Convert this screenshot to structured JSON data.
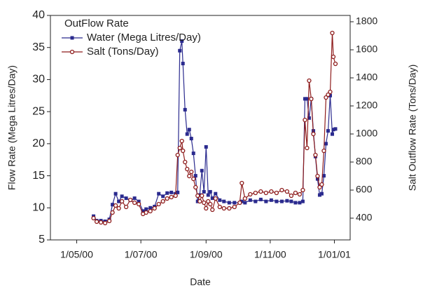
{
  "chart_data": {
    "type": "line",
    "x_label": "Date",
    "y_label": "Flow Rate (Mega Litres/Day)",
    "y2_label": "Salt Outflow Rate (Tons/Day)",
    "legend": "upper left",
    "legend_title": "OutFlow Rate",
    "xlim": [
      "2000-04-06",
      "2001-01-16"
    ],
    "xticks": [
      {
        "value": "2000-05-01",
        "label": "1/05/00"
      },
      {
        "value": "2000-07-01",
        "label": "1/07/00"
      },
      {
        "value": "2000-09-01",
        "label": "1/09/00"
      },
      {
        "value": "2000-11-01",
        "label": "1/11/00"
      },
      {
        "value": "2001-01-01",
        "label": "1/01/01"
      }
    ],
    "ylim": [
      5,
      40
    ],
    "yticks": [
      5,
      10,
      15,
      20,
      25,
      30,
      35,
      40
    ],
    "y2lim": [
      245,
      1845
    ],
    "y2ticks": [
      400,
      600,
      800,
      1000,
      1200,
      1400,
      1600,
      1800
    ],
    "x": [
      "2000-05-17",
      "2000-05-20",
      "2000-05-24",
      "2000-05-28",
      "2000-06-01",
      "2000-06-04",
      "2000-06-07",
      "2000-06-10",
      "2000-06-13",
      "2000-06-17",
      "2000-06-21",
      "2000-06-25",
      "2000-06-29",
      "2000-07-03",
      "2000-07-06",
      "2000-07-10",
      "2000-07-14",
      "2000-07-18",
      "2000-07-22",
      "2000-07-26",
      "2000-07-30",
      "2000-08-03",
      "2000-08-05",
      "2000-08-07",
      "2000-08-09",
      "2000-08-10",
      "2000-08-12",
      "2000-08-14",
      "2000-08-16",
      "2000-08-18",
      "2000-08-20",
      "2000-08-22",
      "2000-08-24",
      "2000-08-26",
      "2000-08-28",
      "2000-08-30",
      "2000-09-01",
      "2000-09-03",
      "2000-09-05",
      "2000-09-07",
      "2000-09-10",
      "2000-09-14",
      "2000-09-18",
      "2000-09-23",
      "2000-09-28",
      "2000-10-03",
      "2000-10-05",
      "2000-10-08",
      "2000-10-13",
      "2000-10-18",
      "2000-10-23",
      "2000-10-28",
      "2000-11-02",
      "2000-11-07",
      "2000-11-12",
      "2000-11-17",
      "2000-11-21",
      "2000-11-25",
      "2000-11-29",
      "2000-12-02",
      "2000-12-04",
      "2000-12-06",
      "2000-12-08",
      "2000-12-10",
      "2000-12-12",
      "2000-12-14",
      "2000-12-16",
      "2000-12-18",
      "2000-12-20",
      "2000-12-22",
      "2000-12-24",
      "2000-12-26",
      "2000-12-28",
      "2000-12-30",
      "2000-12-31",
      "2001-01-02"
    ],
    "series": [
      {
        "name": "Water (Mega Litres/Day)",
        "color": "#2a2a8e",
        "marker": "square",
        "values": [
          8.7,
          8.0,
          8.0,
          7.9,
          8.2,
          10.5,
          12.2,
          11.0,
          11.8,
          11.5,
          11.2,
          11.5,
          11.0,
          9.5,
          9.8,
          10.0,
          10.2,
          12.2,
          11.8,
          12.3,
          12.4,
          12.2,
          12.4,
          34.5,
          36,
          32.5,
          25.3,
          21.5,
          22.2,
          20.8,
          18.5,
          15.0,
          11.0,
          12.0,
          15.8,
          12.5,
          19.5,
          12.0,
          12.5,
          11.5,
          12.2,
          11.2,
          11.0,
          10.8,
          10.8,
          10.8,
          11.0,
          10.8,
          11.2,
          11.0,
          11.3,
          11.0,
          11.2,
          11.0,
          11.0,
          11.1,
          11.0,
          10.8,
          10.8,
          11.0,
          27.0,
          27.0,
          24.0,
          27.0,
          22.0,
          18.0,
          14.5,
          12.0,
          12.2,
          15.0,
          20.0,
          22.0,
          27.5,
          21.5,
          22.2,
          22.3
        ]
      },
      {
        "name": "Salt (Tons/Day)",
        "color": "#8e1c1c",
        "marker": "circle",
        "axis": "y2",
        "values": [
          400,
          375,
          370,
          365,
          380,
          440,
          490,
          470,
          520,
          480,
          530,
          510,
          500,
          430,
          440,
          450,
          470,
          500,
          520,
          540,
          550,
          560,
          850,
          900,
          950,
          880,
          800,
          750,
          700,
          730,
          680,
          620,
          560,
          520,
          560,
          510,
          470,
          520,
          500,
          460,
          540,
          480,
          470,
          470,
          480,
          510,
          650,
          540,
          570,
          580,
          590,
          580,
          590,
          580,
          600,
          590,
          560,
          580,
          570,
          600,
          1100,
          900,
          1380,
          1250,
          1000,
          850,
          700,
          620,
          640,
          880,
          1260,
          1280,
          1300,
          1720,
          1550,
          1500
        ]
      }
    ]
  }
}
